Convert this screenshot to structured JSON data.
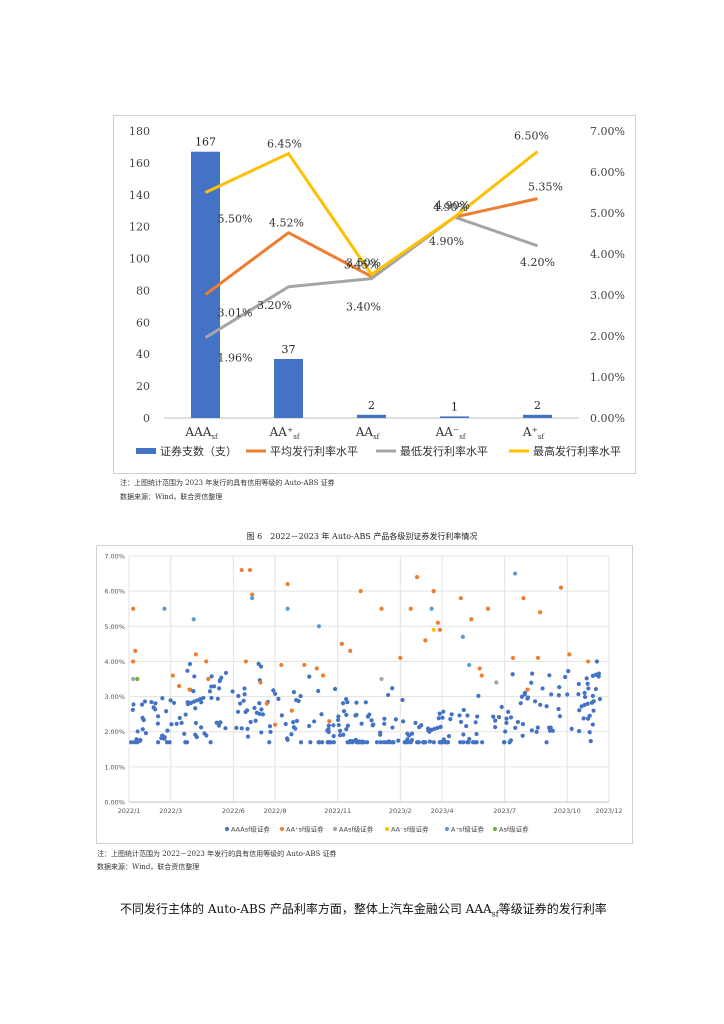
{
  "chart1": {
    "chart_data": {
      "type": "bar+line",
      "categories": [
        "AAA",
        "AA⁺",
        "AA",
        "AA⁻",
        "A⁺"
      ],
      "category_sub": "sf",
      "bars": {
        "name": "证券支数（支）",
        "values": [
          167,
          37,
          2,
          1,
          2
        ],
        "color": "#4472c4"
      },
      "lines": [
        {
          "name": "平均发行利率水平",
          "values": [
            3.01,
            4.52,
            3.45,
            4.9,
            5.35
          ],
          "labels": [
            "3.01%",
            "4.52%",
            "3.45%",
            "4.90%",
            "5.35%"
          ],
          "color": "#ed7d31"
        },
        {
          "name": "最低发行利率水平",
          "values": [
            1.96,
            3.2,
            3.4,
            4.9,
            4.2
          ],
          "labels": [
            "1.96%",
            "3.20%",
            "3.40%",
            "4.90%",
            "4.20%"
          ],
          "color": "#a5a5a5"
        },
        {
          "name": "最高发行利率水平",
          "values": [
            5.5,
            6.45,
            3.5,
            4.9,
            6.5
          ],
          "labels": [
            "5.50%",
            "6.45%",
            "3.50%",
            "4.90%",
            "6.50%"
          ],
          "color": "#ffc000"
        }
      ],
      "y_left": {
        "min": 0,
        "max": 180,
        "ticks": [
          "0",
          "20",
          "40",
          "60",
          "80",
          "100",
          "120",
          "140",
          "160",
          "180"
        ]
      },
      "y_right": {
        "min": 0,
        "max": 7,
        "ticks": [
          "0.00%",
          "1.00%",
          "2.00%",
          "3.00%",
          "4.00%",
          "5.00%",
          "6.00%",
          "7.00%"
        ]
      },
      "bar_labels": [
        "167",
        "37",
        "2",
        "1",
        "2"
      ],
      "legend_position": "bottom"
    },
    "note": "注：上图统计范围为 2023 年发行的具有信用等级的 Auto-ABS 证券",
    "source": "数据来源：Wind，联合资信整理"
  },
  "chart2": {
    "caption": "图 6　2022－2023 年 Auto-ABS 产品各级别证券发行利率情况",
    "chart_data": {
      "type": "scatter",
      "x_ticks": [
        "2022/1",
        "2022/3",
        "2022/6",
        "2022/8",
        "2022/11",
        "2023/2",
        "2023/4",
        "2023/7",
        "2023/10",
        "2023/12"
      ],
      "y": {
        "min": 0,
        "max": 7,
        "ticks": [
          "0.00%",
          "1.00%",
          "2.00%",
          "3.00%",
          "4.00%",
          "5.00%",
          "6.00%",
          "7.00%"
        ]
      },
      "grid": true,
      "legend_position": "bottom",
      "series": [
        {
          "name": "AAAsf级证券",
          "color": "#4472c4"
        },
        {
          "name": "AA⁺sf级证券",
          "color": "#ed7d31"
        },
        {
          "name": "AAsf级证券",
          "color": "#a5a5a5"
        },
        {
          "name": "AA⁻sf级证券",
          "color": "#ffc000"
        },
        {
          "name": "A⁺sf级证券",
          "color": "#5b9bd5"
        },
        {
          "name": "Asf级证券",
          "color": "#70ad47"
        }
      ],
      "points": {
        "AA+": [
          [
            0.2,
            5.5
          ],
          [
            0.3,
            4.3
          ],
          [
            0.2,
            4.0
          ],
          [
            2.1,
            3.6
          ],
          [
            2.4,
            3.3
          ],
          [
            2.9,
            3.2
          ],
          [
            3.2,
            4.2
          ],
          [
            3.7,
            4.0
          ],
          [
            3.8,
            3.5
          ],
          [
            5.4,
            6.6
          ],
          [
            5.6,
            4.0
          ],
          [
            5.8,
            6.6
          ],
          [
            5.9,
            5.9
          ],
          [
            6.3,
            3.4
          ],
          [
            6.6,
            2.8
          ],
          [
            7.0,
            2.2
          ],
          [
            7.3,
            3.9
          ],
          [
            7.6,
            6.2
          ],
          [
            7.8,
            2.6
          ],
          [
            8.4,
            3.9
          ],
          [
            9.0,
            3.8
          ],
          [
            9.3,
            3.6
          ],
          [
            9.6,
            2.3
          ],
          [
            10.2,
            4.5
          ],
          [
            10.6,
            4.3
          ],
          [
            11.1,
            6.0
          ],
          [
            12.1,
            5.5
          ],
          [
            13.0,
            4.1
          ],
          [
            13.5,
            5.5
          ],
          [
            13.8,
            6.4
          ],
          [
            14.2,
            4.6
          ],
          [
            14.6,
            6.0
          ],
          [
            14.8,
            5.1
          ],
          [
            14.9,
            4.9
          ],
          [
            15.9,
            5.8
          ],
          [
            16.4,
            5.2
          ],
          [
            16.8,
            3.8
          ],
          [
            16.9,
            3.6
          ],
          [
            17.2,
            5.5
          ],
          [
            18.4,
            4.1
          ],
          [
            18.9,
            5.8
          ],
          [
            19.1,
            3.2
          ],
          [
            19.6,
            4.1
          ],
          [
            19.7,
            5.4
          ],
          [
            20.7,
            6.1
          ],
          [
            21.1,
            4.2
          ],
          [
            22.0,
            4.0
          ]
        ],
        "AA": [
          [
            0.2,
            3.5
          ],
          [
            12.1,
            3.5
          ],
          [
            17.6,
            3.4
          ]
        ],
        "AA-": [
          [
            14.6,
            4.9
          ]
        ],
        "A+": [
          [
            1.7,
            5.5
          ],
          [
            3.1,
            5.2
          ],
          [
            5.9,
            5.8
          ],
          [
            7.6,
            5.5
          ],
          [
            9.1,
            5.0
          ],
          [
            14.5,
            5.5
          ],
          [
            16.0,
            4.7
          ],
          [
            18.5,
            6.5
          ],
          [
            16.3,
            3.9
          ]
        ],
        "A": [
          [
            0.4,
            3.5
          ]
        ]
      }
    },
    "note": "注：上图统计范围为 2022－2023 年发行的具有信用等级的 Auto-ABS 证券",
    "source": "数据来源：Wind，联合资信整理"
  },
  "paragraph": {
    "text_before": "不同发行主体的 Auto-ABS 产品利率方面，整体上汽车金融公司 AAA",
    "sub": "sf",
    "text_after": "等级证券的发行利率"
  }
}
